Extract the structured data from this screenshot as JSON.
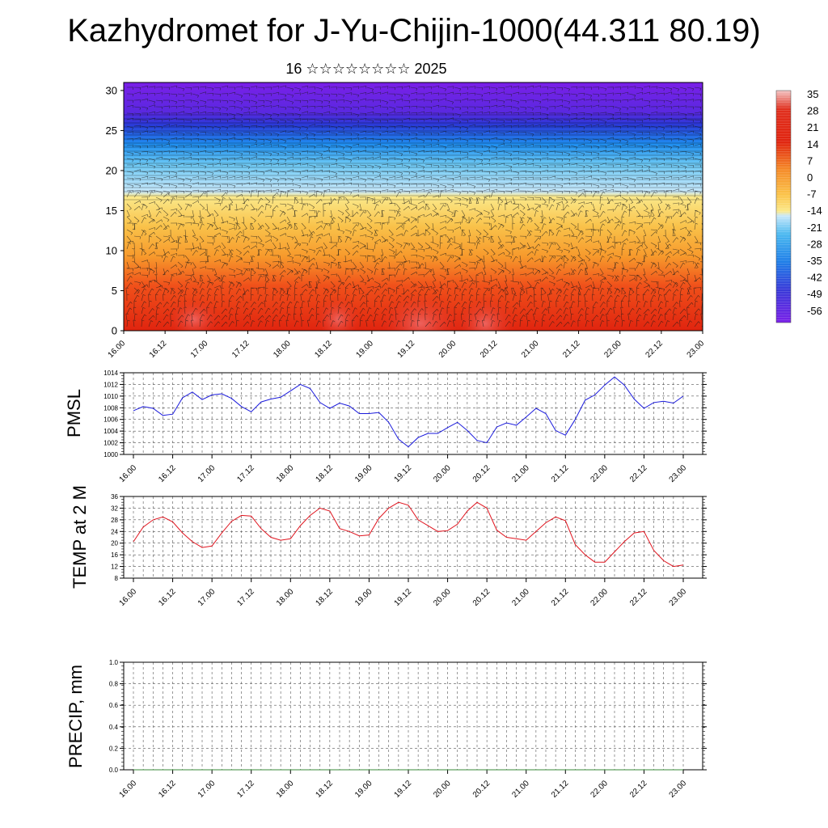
{
  "header": {
    "title": "Kazhydromet for J-Yu-Chijin-1000(44.311 80.19)",
    "subtitle": "16 ☆☆☆☆☆☆☆☆ 2025"
  },
  "chart_data": [
    {
      "type": "heatmap",
      "xlabel": "",
      "ylabel": "",
      "x_ticks": [
        "16.00",
        "16.12",
        "17.00",
        "17.12",
        "18.00",
        "18.12",
        "19.00",
        "19.12",
        "20.00",
        "20.12",
        "21.00",
        "21.12",
        "22.00",
        "22.12",
        "23.00"
      ],
      "y_ticks": [
        0,
        5,
        10,
        15,
        20,
        25,
        30
      ],
      "ylim": [
        0,
        31
      ],
      "colorbar": {
        "labels": [
          "35",
          "28",
          "21",
          "14",
          "7",
          "0",
          "-7",
          "-14",
          "-21",
          "-28",
          "-35",
          "-42",
          "-49",
          "-56"
        ],
        "vmin": -60,
        "vmax": 38
      },
      "colors": {
        "cold": "#7a20e8",
        "cool": "#1f8ff0",
        "pale": "#c8e8fa",
        "mild": "#fbe98a",
        "warm": "#f79a2c",
        "hot": "#e0240f"
      }
    },
    {
      "type": "line",
      "ylabel": "PMSL",
      "ylim": [
        1000,
        1014
      ],
      "y_ticks": [
        "1014",
        "1012",
        "1010",
        "1008",
        "1006",
        "1004",
        "1002",
        "1000"
      ],
      "x_ticks": [
        "16.00",
        "16.12",
        "17.00",
        "17.12",
        "18.00",
        "18.12",
        "19.00",
        "19.12",
        "20.00",
        "20.12",
        "21.00",
        "21.12",
        "22.00",
        "22.12",
        "23.00"
      ],
      "color": "#1a1adc",
      "values": [
        1007.5,
        1008.2,
        1007.9,
        1006.7,
        1006.9,
        1009.7,
        1010.7,
        1009.4,
        1010.2,
        1010.4,
        1009.6,
        1008.2,
        1007.3,
        1009.0,
        1009.5,
        1009.8,
        1010.9,
        1012.0,
        1011.3,
        1008.9,
        1007.9,
        1008.8,
        1008.3,
        1007.0,
        1007.0,
        1007.2,
        1005.5,
        1002.6,
        1001.3,
        1002.9,
        1003.6,
        1003.6,
        1004.6,
        1005.5,
        1004.1,
        1002.4,
        1002.0,
        1004.7,
        1005.4,
        1005.0,
        1006.4,
        1007.9,
        1007.0,
        1004.1,
        1003.3,
        1006.0,
        1009.3,
        1010.2,
        1011.9,
        1013.3,
        1011.9,
        1009.5,
        1007.9,
        1008.9,
        1009.1,
        1008.8,
        1010.0
      ]
    },
    {
      "type": "line",
      "ylabel": "TEMP at 2 M",
      "ylim": [
        8,
        36
      ],
      "y_ticks": [
        "36",
        "32",
        "28",
        "24",
        "20",
        "16",
        "12",
        "8"
      ],
      "x_ticks": [
        "16.00",
        "16.12",
        "17.00",
        "17.12",
        "18.00",
        "18.12",
        "19.00",
        "19.12",
        "20.00",
        "20.12",
        "21.00",
        "21.12",
        "22.00",
        "22.12",
        "23.00"
      ],
      "color": "#e0141e",
      "values": [
        20.5,
        25.5,
        28.0,
        29.0,
        27.3,
        23.5,
        20.5,
        18.5,
        19.0,
        23.5,
        27.5,
        29.5,
        29.3,
        25.0,
        22.0,
        21.0,
        21.5,
        26.0,
        29.5,
        32.0,
        31.0,
        25.0,
        24.0,
        22.5,
        22.8,
        28.5,
        32.0,
        34.0,
        33.0,
        28.0,
        26.0,
        24.0,
        24.3,
        26.5,
        31.0,
        34.0,
        32.0,
        24.5,
        22.0,
        21.5,
        21.0,
        24.0,
        27.0,
        29.0,
        27.7,
        19.5,
        16.0,
        13.5,
        13.5,
        17.0,
        20.5,
        23.5,
        24.0,
        17.5,
        14.0,
        12.0,
        12.5
      ]
    },
    {
      "type": "line",
      "ylabel": "PRECIP, mm",
      "ylim": [
        0,
        1
      ],
      "y_ticks": [
        "1.0",
        "0.8",
        "0.6",
        "0.4",
        "0.2",
        "0.0"
      ],
      "x_ticks": [
        "16.00",
        "16.12",
        "17.00",
        "17.12",
        "18.00",
        "18.12",
        "19.00",
        "19.12",
        "20.00",
        "20.12",
        "21.00",
        "21.12",
        "22.00",
        "22.12",
        "23.00"
      ],
      "color": "#3a8a3a",
      "values": [
        0,
        0,
        0,
        0,
        0,
        0,
        0,
        0,
        0,
        0,
        0,
        0,
        0,
        0,
        0,
        0,
        0,
        0,
        0,
        0,
        0,
        0,
        0,
        0,
        0,
        0,
        0,
        0,
        0,
        0,
        0,
        0,
        0,
        0,
        0,
        0,
        0,
        0,
        0,
        0,
        0,
        0,
        0,
        0,
        0,
        0,
        0,
        0,
        0,
        0,
        0,
        0,
        0,
        0,
        0,
        0,
        0
      ]
    }
  ]
}
